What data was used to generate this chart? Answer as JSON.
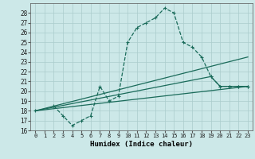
{
  "xlabel": "Humidex (Indice chaleur)",
  "bg_color": "#cce8e8",
  "grid_color": "#aacccc",
  "line_color": "#1a6b5a",
  "xlim": [
    -0.5,
    23.5
  ],
  "ylim": [
    16,
    29
  ],
  "yticks": [
    16,
    17,
    18,
    19,
    20,
    21,
    22,
    23,
    24,
    25,
    26,
    27,
    28
  ],
  "xticks": [
    0,
    1,
    2,
    3,
    4,
    5,
    6,
    7,
    8,
    9,
    10,
    11,
    12,
    13,
    14,
    15,
    16,
    17,
    18,
    19,
    20,
    21,
    22,
    23
  ],
  "series1_x": [
    2,
    3,
    4,
    5,
    6,
    7,
    8,
    9,
    10,
    11,
    12,
    13,
    14,
    15,
    16,
    17,
    18,
    19,
    20,
    21,
    22,
    23
  ],
  "series1_y": [
    18.5,
    17.5,
    16.5,
    17.0,
    17.5,
    20.5,
    19.0,
    19.5,
    25.0,
    26.5,
    27.0,
    27.5,
    28.5,
    28.0,
    25.0,
    24.5,
    23.5,
    21.5,
    20.5,
    20.5,
    20.5,
    20.5
  ],
  "series2_x": [
    0,
    23
  ],
  "series2_y": [
    18.0,
    23.5
  ],
  "series3_x": [
    0,
    23
  ],
  "series3_y": [
    18.0,
    20.5
  ],
  "series4_x": [
    0,
    19,
    20,
    21,
    22,
    23
  ],
  "series4_y": [
    18.0,
    21.5,
    20.5,
    20.5,
    20.5,
    20.5
  ]
}
